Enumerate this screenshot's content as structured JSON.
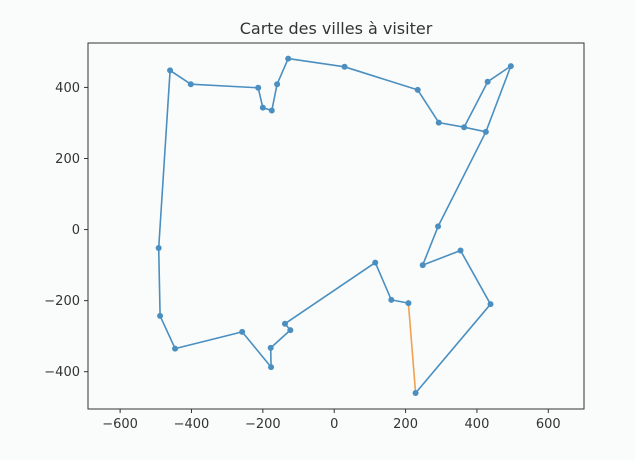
{
  "chart_data": {
    "type": "scatter",
    "title": "Carte des villes à visiter",
    "xlabel": "",
    "ylabel": "",
    "xlim": [
      -690,
      700
    ],
    "ylim": [
      -505,
      525
    ],
    "x_ticks": [
      -600,
      -400,
      -200,
      0,
      200,
      400,
      600
    ],
    "y_ticks": [
      -400,
      -200,
      0,
      200,
      400
    ],
    "x_tick_labels": [
      "−600",
      "−400",
      "−200",
      "0",
      "200",
      "400",
      "600"
    ],
    "y_tick_labels": [
      "−400",
      "−200",
      "0",
      "200",
      "400"
    ],
    "grid": false,
    "legend": "none",
    "series": [
      {
        "role": "tour",
        "color": "#4a8fc0",
        "closed": false,
        "points": [
          [
            208,
            -207
          ],
          [
            160,
            -198
          ],
          [
            115,
            -93
          ],
          [
            -138,
            -265
          ],
          [
            -123,
            -283
          ],
          [
            -178,
            -333
          ],
          [
            -177,
            -387
          ],
          [
            -258,
            -288
          ],
          [
            -446,
            -335
          ],
          [
            -488,
            -243
          ],
          [
            -492,
            -52
          ],
          [
            -460,
            448
          ],
          [
            -402,
            409
          ],
          [
            -213,
            399
          ],
          [
            -200,
            343
          ],
          [
            -175,
            335
          ],
          [
            -160,
            409
          ],
          [
            -129,
            481
          ],
          [
            29,
            458
          ],
          [
            234,
            393
          ],
          [
            293,
            301
          ],
          [
            364,
            288
          ],
          [
            425,
            275
          ],
          [
            291,
            9
          ],
          [
            248,
            -100
          ],
          [
            354,
            -59
          ],
          [
            438,
            -210
          ],
          [
            228,
            -460
          ]
        ]
      },
      {
        "role": "return-leg",
        "color": "#f0a050",
        "points": [
          [
            208,
            -207
          ],
          [
            228,
            -460
          ]
        ]
      },
      {
        "role": "top-right-spur",
        "color": "#4a8fc0",
        "points": [
          [
            425,
            275
          ],
          [
            495,
            460
          ],
          [
            430,
            416
          ],
          [
            364,
            288
          ]
        ]
      }
    ]
  }
}
